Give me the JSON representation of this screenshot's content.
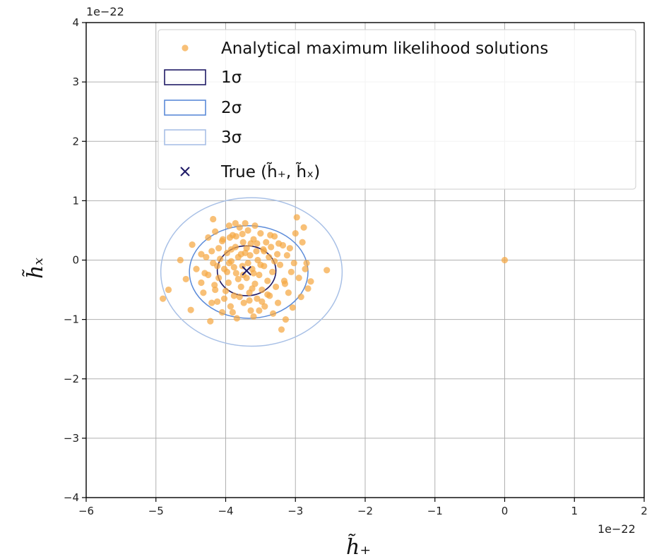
{
  "chart_data": {
    "type": "scatter",
    "title": "",
    "xlabel": "h̃₊",
    "ylabel": "h̃ₓ",
    "x_scale_label": "1e−22",
    "y_scale_label": "1e−22",
    "xlim": [
      -6,
      2
    ],
    "ylim": [
      -4,
      4
    ],
    "xticks": [
      -6,
      -5,
      -4,
      -3,
      -2,
      -1,
      0,
      1,
      2
    ],
    "yticks": [
      -4,
      -3,
      -2,
      -1,
      0,
      1,
      2,
      3,
      4
    ],
    "grid": true,
    "legend_placement": "top-right",
    "legend": [
      {
        "label": "Analytical maximum likelihood solutions",
        "kind": "dot",
        "color": "#f5a742"
      },
      {
        "label": "1σ",
        "kind": "box",
        "color": "#1f1a66"
      },
      {
        "label": "2σ",
        "kind": "box",
        "color": "#5b8bd9"
      },
      {
        "label": "3σ",
        "kind": "box",
        "color": "#a8c0e6"
      },
      {
        "label": "True (h̃₊, h̃ₓ)",
        "kind": "cross",
        "color": "#1f1a66"
      }
    ],
    "true_point": {
      "x": -3.7,
      "y": -0.18
    },
    "ellipses": [
      {
        "name": "1σ",
        "cx": -3.7,
        "cy": -0.18,
        "rx": 0.42,
        "ry": 0.42,
        "color": "#1f1a66"
      },
      {
        "name": "2σ",
        "cx": -3.67,
        "cy": -0.2,
        "rx": 0.85,
        "ry": 0.78,
        "color": "#5b8bd9"
      },
      {
        "name": "3σ",
        "cx": -3.63,
        "cy": -0.2,
        "rx": 1.3,
        "ry": 1.25,
        "color": "#a8c0e6"
      }
    ],
    "series": [
      {
        "name": "Analytical maximum likelihood solutions",
        "color": "#f5a742",
        "points": [
          [
            0,
            0
          ],
          [
            -4.9,
            -0.65
          ],
          [
            -4.82,
            -0.5
          ],
          [
            -4.65,
            0.0
          ],
          [
            -4.57,
            -0.32
          ],
          [
            -4.5,
            -0.84
          ],
          [
            -4.48,
            0.26
          ],
          [
            -4.42,
            -0.15
          ],
          [
            -4.35,
            0.1
          ],
          [
            -4.32,
            -0.55
          ],
          [
            -4.3,
            -0.22
          ],
          [
            -4.25,
            0.38
          ],
          [
            -4.22,
            -1.03
          ],
          [
            -4.2,
            0.15
          ],
          [
            -4.18,
            -0.05
          ],
          [
            -4.18,
            0.69
          ],
          [
            -4.16,
            -0.42
          ],
          [
            -4.15,
            0.48
          ],
          [
            -4.12,
            -0.7
          ],
          [
            -4.1,
            0.2
          ],
          [
            -4.1,
            -0.3
          ],
          [
            -4.08,
            0.02
          ],
          [
            -4.05,
            -0.88
          ],
          [
            -4.04,
            0.35
          ],
          [
            -4.02,
            -0.15
          ],
          [
            -4.0,
            -0.52
          ],
          [
            -3.98,
            0.12
          ],
          [
            -3.96,
            -0.38
          ],
          [
            -3.95,
            0.58
          ],
          [
            -3.93,
            -0.78
          ],
          [
            -3.92,
            -0.02
          ],
          [
            -3.9,
            0.42
          ],
          [
            -3.88,
            -0.6
          ],
          [
            -3.86,
            0.22
          ],
          [
            -3.85,
            -0.22
          ],
          [
            -3.84,
            -0.98
          ],
          [
            -3.82,
            0.05
          ],
          [
            -3.8,
            0.55
          ],
          [
            -3.78,
            -0.45
          ],
          [
            -3.76,
            -0.1
          ],
          [
            -3.75,
            0.3
          ],
          [
            -3.74,
            -0.72
          ],
          [
            -3.72,
            0.12
          ],
          [
            -3.7,
            -0.3
          ],
          [
            -3.68,
            0.5
          ],
          [
            -3.66,
            -0.55
          ],
          [
            -3.65,
            0.08
          ],
          [
            -3.64,
            -0.85
          ],
          [
            -3.62,
            -0.15
          ],
          [
            -3.6,
            0.35
          ],
          [
            -3.58,
            -0.4
          ],
          [
            -3.56,
            0.15
          ],
          [
            -3.55,
            -0.65
          ],
          [
            -3.54,
            0.0
          ],
          [
            -3.52,
            -0.25
          ],
          [
            -3.5,
            0.45
          ],
          [
            -3.48,
            -0.5
          ],
          [
            -3.46,
            0.18
          ],
          [
            -3.45,
            -0.1
          ],
          [
            -3.44,
            -0.78
          ],
          [
            -3.42,
            0.3
          ],
          [
            -3.4,
            -0.35
          ],
          [
            -3.38,
            0.05
          ],
          [
            -3.37,
            -0.6
          ],
          [
            -3.35,
            0.22
          ],
          [
            -3.33,
            -0.2
          ],
          [
            -3.32,
            -0.9
          ],
          [
            -3.3,
            0.4
          ],
          [
            -3.28,
            -0.45
          ],
          [
            -3.26,
            0.1
          ],
          [
            -3.25,
            -0.72
          ],
          [
            -3.22,
            -0.08
          ],
          [
            -3.2,
            -1.17
          ],
          [
            -3.18,
            0.25
          ],
          [
            -3.16,
            -0.35
          ],
          [
            -3.14,
            -1.0
          ],
          [
            -3.12,
            0.08
          ],
          [
            -3.1,
            -0.55
          ],
          [
            -3.08,
            0.2
          ],
          [
            -3.06,
            -0.2
          ],
          [
            -3.04,
            -0.8
          ],
          [
            -3.02,
            -0.05
          ],
          [
            -3.0,
            0.45
          ],
          [
            -2.98,
            0.72
          ],
          [
            -2.95,
            -0.3
          ],
          [
            -2.92,
            -0.62
          ],
          [
            -2.9,
            0.3
          ],
          [
            -2.88,
            0.55
          ],
          [
            -2.86,
            -0.15
          ],
          [
            -2.84,
            -0.05
          ],
          [
            -2.82,
            -0.48
          ],
          [
            -2.78,
            -0.36
          ],
          [
            -2.55,
            -0.17
          ],
          [
            -4.05,
            0.32
          ],
          [
            -3.95,
            -0.05
          ],
          [
            -3.85,
            0.4
          ],
          [
            -3.75,
            -0.25
          ],
          [
            -3.7,
            0.2
          ],
          [
            -3.62,
            -0.48
          ],
          [
            -3.55,
            0.28
          ],
          [
            -3.5,
            -0.08
          ],
          [
            -3.45,
            0.15
          ],
          [
            -3.4,
            -0.58
          ],
          [
            -3.92,
            0.18
          ],
          [
            -3.82,
            -0.32
          ],
          [
            -3.78,
            0.1
          ],
          [
            -3.68,
            -0.05
          ],
          [
            -3.6,
            -0.22
          ],
          [
            -3.98,
            -0.2
          ],
          [
            -4.12,
            -0.1
          ],
          [
            -4.28,
            0.05
          ],
          [
            -4.35,
            -0.38
          ],
          [
            -3.88,
            -0.12
          ],
          [
            -3.72,
            0.62
          ],
          [
            -3.58,
            0.58
          ],
          [
            -3.8,
            -0.62
          ],
          [
            -3.66,
            -0.68
          ],
          [
            -3.52,
            -0.85
          ],
          [
            -3.36,
            0.42
          ],
          [
            -3.24,
            0.28
          ],
          [
            -3.15,
            -0.4
          ],
          [
            -4.02,
            -0.65
          ],
          [
            -4.15,
            -0.5
          ],
          [
            -3.9,
            -0.88
          ],
          [
            -3.6,
            -0.95
          ],
          [
            -3.48,
            -0.7
          ],
          [
            -3.3,
            -0.02
          ],
          [
            -4.2,
            -0.72
          ],
          [
            -4.25,
            -0.25
          ],
          [
            -3.94,
            0.38
          ],
          [
            -3.86,
            0.62
          ],
          [
            -3.76,
            0.44
          ],
          [
            -3.64,
            0.28
          ]
        ]
      }
    ]
  }
}
